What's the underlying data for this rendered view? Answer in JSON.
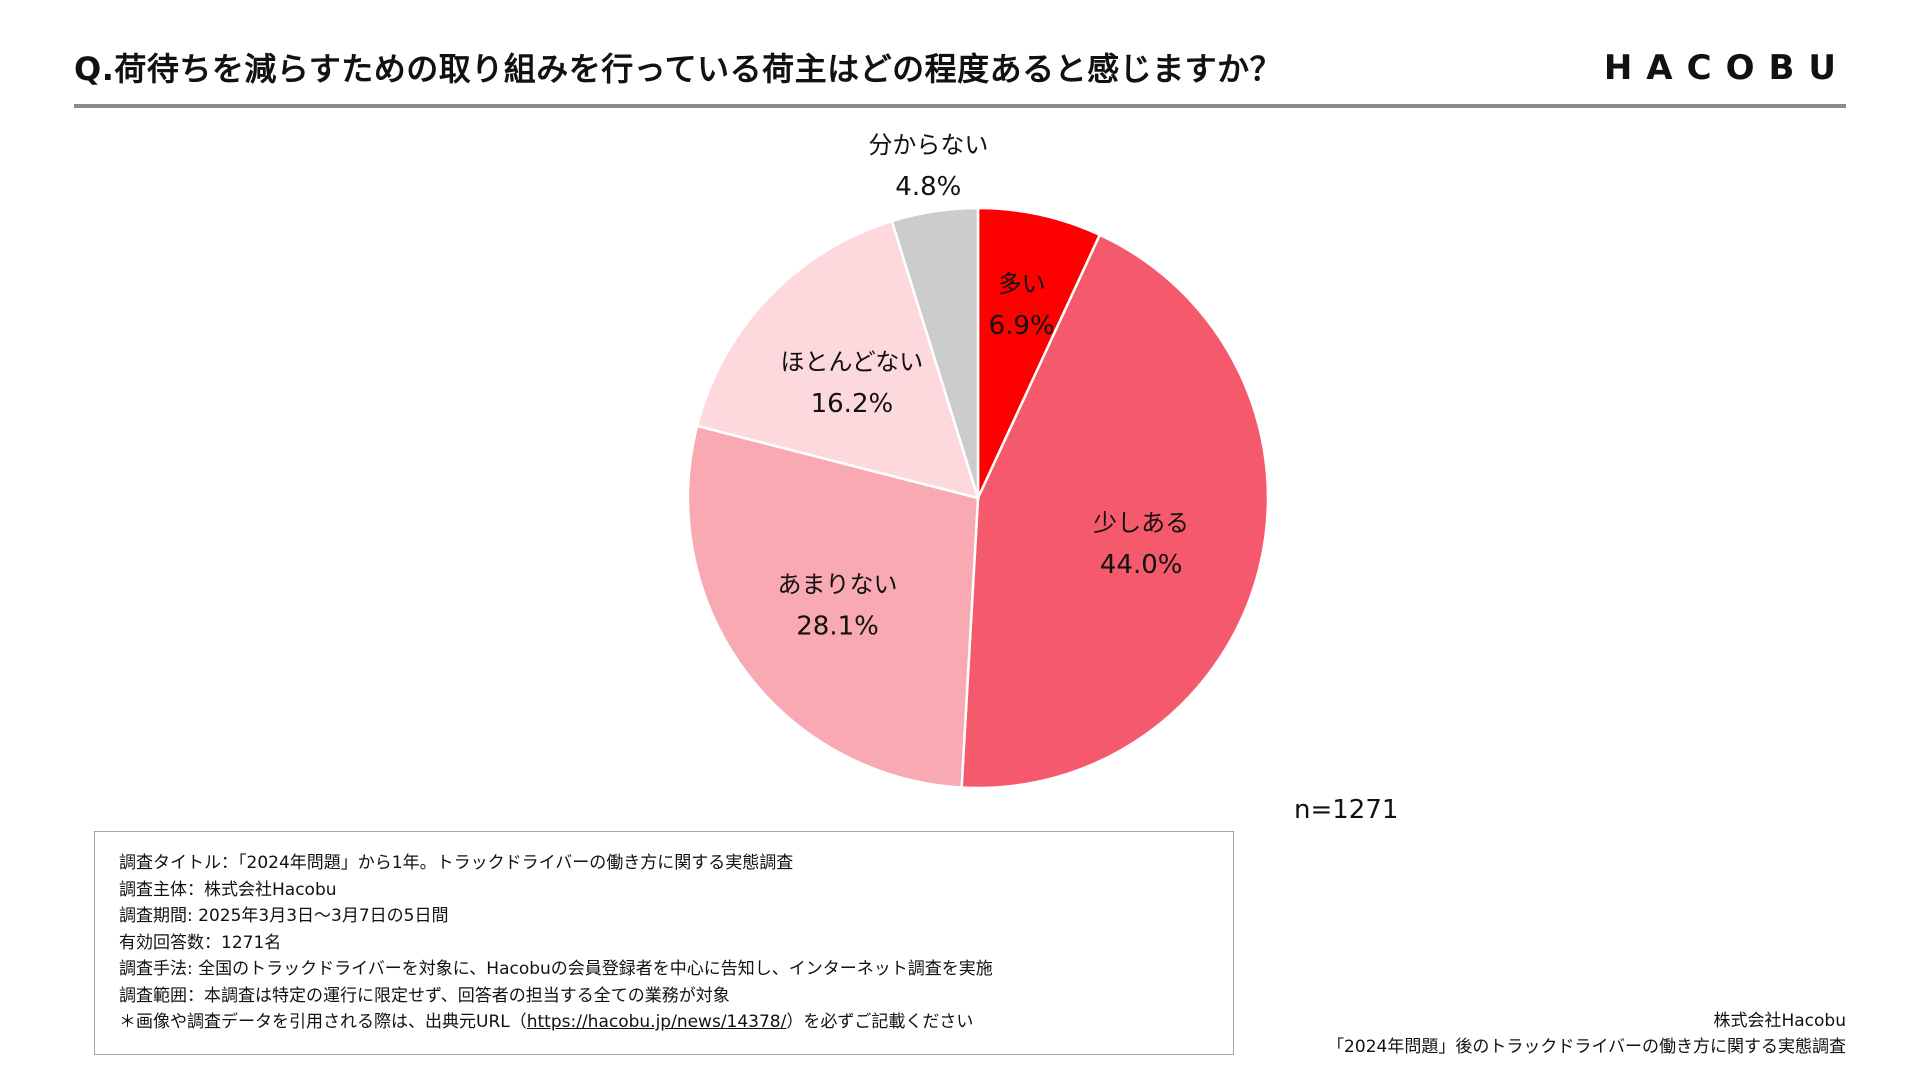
{
  "header": {
    "title": "Q.荷待ちを減らすための取り組みを行っている荷主はどの程度あると感じますか？",
    "logo": "HACOBU"
  },
  "chart_data": {
    "type": "pie",
    "title": "",
    "categories": [
      "多い",
      "少しある",
      "あまりない",
      "ほとんどない",
      "分からない"
    ],
    "values": [
      6.9,
      44.0,
      28.1,
      16.2,
      4.8
    ],
    "value_labels": [
      "6.9%",
      "44.0%",
      "28.1%",
      "16.2%",
      "4.8%"
    ],
    "colors": [
      "#ff0000",
      "#f5596c",
      "#f8a9b2",
      "#fdd8dd",
      "#cccccc"
    ],
    "start": "12 o'clock",
    "direction": "clockwise",
    "legend": "none"
  },
  "sample": {
    "label": "n=1271"
  },
  "notes": [
    "調査タイトル：「2024年問題」から1年。トラックドライバーの働き方に関する実態調査",
    "調査主体：株式会社Hacobu",
    "調査期間: 2025年3月3日～3月7日の5日間",
    "有効回答数：1271名",
    "調査手法: 全国のトラックドライバーを対象に、Hacobuの会員登録者を中心に告知し、インターネット調査を実施",
    "調査範囲：本調査は特定の運行に限定せず、回答者の担当する全ての業務が対象"
  ],
  "citation": {
    "prefix": "＊画像や調査データを引用される際は、出典元URL（",
    "url": "https://hacobu.jp/news/14378/",
    "suffix": "）を必ずご記載ください"
  },
  "source": {
    "company": "株式会社Hacobu",
    "report": "「2024年問題」後のトラックドライバーの働き方に関する実態調査"
  }
}
